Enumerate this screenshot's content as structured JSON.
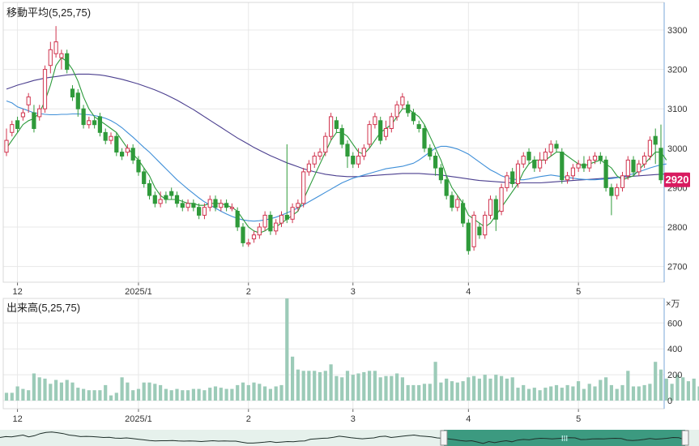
{
  "colors": {
    "up": "#d0344e",
    "down": "#2f9a3a",
    "ma5": "#2b9a3a",
    "ma25": "#3f8fd8",
    "ma75": "#4b3f8f",
    "volume": "#9ccbb8",
    "last_price_badge": "#d81b60",
    "navigator_fill": "#3c9a80",
    "grid": "#e8e8e8",
    "axis": "#333333"
  },
  "chart_data": [
    {
      "type": "candlestick",
      "title": "移動平均(5,25,75)",
      "x_ticks": [
        "12",
        "2025/1",
        "2",
        "3",
        "4",
        "5"
      ],
      "y_ticks": [
        "3300",
        "3200",
        "3100",
        "3000",
        "2900",
        "2800",
        "2700"
      ],
      "ylim": [
        2660,
        3370
      ],
      "last_price_label": "2920",
      "grid": true,
      "candles": [
        [
          2990,
          3020,
          2980,
          3050
        ],
        [
          3040,
          3060,
          3030,
          3070
        ],
        [
          3070,
          3050,
          3040,
          3080
        ],
        [
          3080,
          3090,
          3070,
          3100
        ],
        [
          3110,
          3130,
          3090,
          3140
        ],
        [
          3090,
          3050,
          3040,
          3110
        ],
        [
          3080,
          3100,
          3070,
          3110
        ],
        [
          3100,
          3200,
          3090,
          3210
        ],
        [
          3210,
          3250,
          3190,
          3270
        ],
        [
          3240,
          3270,
          3230,
          3310
        ],
        [
          3230,
          3240,
          3200,
          3250
        ],
        [
          3240,
          3200,
          3190,
          3250
        ],
        [
          3150,
          3130,
          3120,
          3160
        ],
        [
          3140,
          3100,
          3080,
          3150
        ],
        [
          3100,
          3060,
          3050,
          3110
        ],
        [
          3060,
          3070,
          3050,
          3080
        ],
        [
          3070,
          3060,
          3050,
          3080
        ],
        [
          3080,
          3040,
          3030,
          3090
        ],
        [
          3040,
          3020,
          3010,
          3050
        ],
        [
          3020,
          3030,
          3010,
          3040
        ],
        [
          3030,
          2990,
          2980,
          3040
        ],
        [
          2990,
          2980,
          2970,
          3000
        ],
        [
          2990,
          3000,
          2980,
          3010
        ],
        [
          3000,
          2970,
          2960,
          3010
        ],
        [
          2970,
          2940,
          2930,
          2980
        ],
        [
          2940,
          2910,
          2900,
          2950
        ],
        [
          2910,
          2880,
          2870,
          2920
        ],
        [
          2880,
          2860,
          2850,
          2890
        ],
        [
          2860,
          2870,
          2850,
          2890
        ],
        [
          2880,
          2870,
          2860,
          2890
        ],
        [
          2890,
          2880,
          2870,
          2900
        ],
        [
          2880,
          2860,
          2850,
          2890
        ],
        [
          2860,
          2850,
          2840,
          2870
        ],
        [
          2850,
          2860,
          2840,
          2870
        ],
        [
          2860,
          2850,
          2840,
          2870
        ],
        [
          2850,
          2830,
          2820,
          2860
        ],
        [
          2830,
          2850,
          2820,
          2860
        ],
        [
          2850,
          2870,
          2840,
          2880
        ],
        [
          2870,
          2850,
          2840,
          2880
        ],
        [
          2850,
          2860,
          2840,
          2870
        ],
        [
          2860,
          2850,
          2840,
          2870
        ],
        [
          2850,
          2850,
          2840,
          2860
        ],
        [
          2840,
          2800,
          2790,
          2850
        ],
        [
          2800,
          2760,
          2750,
          2810
        ],
        [
          2760,
          2760,
          2750,
          2770
        ],
        [
          2770,
          2780,
          2760,
          2790
        ],
        [
          2780,
          2800,
          2770,
          2810
        ],
        [
          2800,
          2830,
          2790,
          2840
        ],
        [
          2830,
          2790,
          2780,
          2840
        ],
        [
          2790,
          2810,
          2780,
          2820
        ],
        [
          2810,
          2830,
          2800,
          2840
        ],
        [
          2830,
          2820,
          2810,
          3010
        ],
        [
          2820,
          2850,
          2810,
          2860
        ],
        [
          2850,
          2860,
          2840,
          2870
        ],
        [
          2860,
          2940,
          2850,
          2950
        ],
        [
          2940,
          2960,
          2930,
          2970
        ],
        [
          2960,
          2980,
          2950,
          2990
        ],
        [
          2980,
          2990,
          2970,
          3000
        ],
        [
          2990,
          3030,
          2980,
          3040
        ],
        [
          3030,
          3080,
          3020,
          3090
        ],
        [
          3070,
          3050,
          3040,
          3080
        ],
        [
          3050,
          3010,
          3000,
          3060
        ],
        [
          3010,
          2980,
          2950,
          3020
        ],
        [
          2980,
          2960,
          2950,
          2990
        ],
        [
          2960,
          2980,
          2950,
          3000
        ],
        [
          2980,
          3000,
          2970,
          3010
        ],
        [
          3010,
          3060,
          3000,
          3070
        ],
        [
          3060,
          3080,
          3050,
          3090
        ],
        [
          3070,
          3020,
          3010,
          3080
        ],
        [
          3030,
          3050,
          3020,
          3070
        ],
        [
          3050,
          3080,
          3040,
          3090
        ],
        [
          3080,
          3110,
          3070,
          3120
        ],
        [
          3110,
          3130,
          3100,
          3140
        ],
        [
          3110,
          3090,
          3080,
          3120
        ],
        [
          3090,
          3070,
          3060,
          3100
        ],
        [
          3060,
          3050,
          3040,
          3070
        ],
        [
          3050,
          3000,
          2990,
          3060
        ],
        [
          3000,
          2980,
          2970,
          3010
        ],
        [
          2980,
          2950,
          2930,
          2990
        ],
        [
          2950,
          2920,
          2910,
          2960
        ],
        [
          2920,
          2880,
          2870,
          2930
        ],
        [
          2880,
          2850,
          2840,
          2890
        ],
        [
          2850,
          2870,
          2840,
          2880
        ],
        [
          2860,
          2810,
          2800,
          2870
        ],
        [
          2810,
          2740,
          2730,
          2820
        ],
        [
          2750,
          2830,
          2740,
          2840
        ],
        [
          2800,
          2780,
          2770,
          2810
        ],
        [
          2780,
          2830,
          2770,
          2840
        ],
        [
          2830,
          2870,
          2820,
          2880
        ],
        [
          2870,
          2820,
          2790,
          2880
        ],
        [
          2840,
          2900,
          2830,
          2910
        ],
        [
          2900,
          2930,
          2890,
          2940
        ],
        [
          2940,
          2910,
          2900,
          2950
        ],
        [
          2910,
          2960,
          2900,
          2970
        ],
        [
          2960,
          2980,
          2950,
          2990
        ],
        [
          2990,
          2970,
          2960,
          3000
        ],
        [
          2970,
          2950,
          2940,
          2980
        ],
        [
          2950,
          2970,
          2940,
          2990
        ],
        [
          2970,
          2990,
          2960,
          3000
        ],
        [
          2990,
          3010,
          2980,
          3020
        ],
        [
          3010,
          3000,
          2990,
          3020
        ],
        [
          2990,
          2920,
          2910,
          3000
        ],
        [
          2920,
          2930,
          2910,
          2940
        ],
        [
          2930,
          2950,
          2920,
          2960
        ],
        [
          2950,
          2960,
          2940,
          2970
        ],
        [
          2960,
          2950,
          2940,
          2980
        ],
        [
          2950,
          2970,
          2940,
          2980
        ],
        [
          2970,
          2980,
          2960,
          2990
        ],
        [
          2980,
          2970,
          2960,
          2990
        ],
        [
          2970,
          2900,
          2890,
          2980
        ],
        [
          2900,
          2880,
          2830,
          2910
        ],
        [
          2880,
          2900,
          2870,
          2910
        ],
        [
          2900,
          2930,
          2890,
          2940
        ],
        [
          2930,
          2970,
          2920,
          2980
        ],
        [
          2970,
          2940,
          2930,
          2980
        ],
        [
          2940,
          2960,
          2930,
          2970
        ],
        [
          2960,
          2980,
          2950,
          2990
        ],
        [
          2980,
          3020,
          2970,
          3030
        ],
        [
          3030,
          3010,
          2960,
          3050
        ],
        [
          3000,
          2920,
          2910,
          3060
        ]
      ],
      "ma5": [
        3000,
        3020,
        3040,
        3060,
        3070,
        3075,
        3090,
        3120,
        3160,
        3210,
        3230,
        3220,
        3200,
        3170,
        3130,
        3100,
        3080,
        3070,
        3060,
        3050,
        3040,
        3020,
        3000,
        2985,
        2970,
        2950,
        2930,
        2900,
        2880,
        2870,
        2870,
        2870,
        2865,
        2860,
        2860,
        2855,
        2855,
        2860,
        2860,
        2860,
        2855,
        2850,
        2840,
        2820,
        2800,
        2790,
        2785,
        2790,
        2800,
        2800,
        2810,
        2820,
        2830,
        2840,
        2870,
        2900,
        2930,
        2960,
        2990,
        3020,
        3040,
        3040,
        3030,
        3010,
        2990,
        2985,
        3000,
        3020,
        3040,
        3050,
        3060,
        3080,
        3100,
        3100,
        3090,
        3080,
        3060,
        3030,
        3000,
        2970,
        2930,
        2900,
        2880,
        2860,
        2830,
        2820,
        2810,
        2800,
        2810,
        2830,
        2850,
        2870,
        2890,
        2910,
        2940,
        2960,
        2970,
        2970,
        2970,
        2980,
        2990,
        2990,
        2980,
        2970,
        2960,
        2955,
        2960,
        2965,
        2970,
        2960,
        2950,
        2930,
        2920,
        2925,
        2930,
        2945,
        2960,
        2975,
        2990,
        2990,
        2970
      ],
      "ma25": [
        3120,
        3115,
        3105,
        3100,
        3095,
        3090,
        3088,
        3086,
        3085,
        3085,
        3086,
        3086,
        3087,
        3087,
        3086,
        3085,
        3083,
        3080,
        3076,
        3070,
        3062,
        3052,
        3040,
        3028,
        3015,
        3002,
        2990,
        2976,
        2962,
        2948,
        2934,
        2920,
        2908,
        2896,
        2885,
        2874,
        2864,
        2856,
        2848,
        2840,
        2833,
        2827,
        2822,
        2818,
        2816,
        2815,
        2816,
        2818,
        2821,
        2825,
        2830,
        2836,
        2842,
        2849,
        2856,
        2864,
        2872,
        2880,
        2888,
        2896,
        2904,
        2912,
        2918,
        2924,
        2928,
        2932,
        2936,
        2940,
        2944,
        2948,
        2950,
        2952,
        2954,
        2958,
        2962,
        2970,
        2980,
        2990,
        3000,
        3005,
        3005,
        3002,
        2998,
        2992,
        2985,
        2975,
        2965,
        2955,
        2945,
        2938,
        2930,
        2925,
        2922,
        2920,
        2920,
        2922,
        2925,
        2928,
        2930,
        2932,
        2930,
        2928,
        2926,
        2924,
        2922,
        2921,
        2920,
        2920,
        2921,
        2922,
        2923,
        2925,
        2928,
        2932,
        2935,
        2940,
        2945,
        2950,
        2954,
        2958,
        2960
      ],
      "ma75": [
        3150,
        3155,
        3160,
        3164,
        3168,
        3172,
        3175,
        3178,
        3180,
        3182,
        3184,
        3186,
        3187,
        3188,
        3188,
        3188,
        3187,
        3186,
        3184,
        3181,
        3178,
        3175,
        3171,
        3167,
        3163,
        3158,
        3153,
        3148,
        3142,
        3136,
        3129,
        3122,
        3114,
        3106,
        3098,
        3089,
        3080,
        3071,
        3062,
        3053,
        3044,
        3035,
        3026,
        3018,
        3010,
        3002,
        2995,
        2988,
        2981,
        2975,
        2969,
        2963,
        2958,
        2953,
        2948,
        2944,
        2940,
        2937,
        2934,
        2932,
        2930,
        2929,
        2928,
        2928,
        2928,
        2929,
        2930,
        2931,
        2932,
        2933,
        2934,
        2935,
        2936,
        2936,
        2936,
        2936,
        2935,
        2934,
        2933,
        2932,
        2930,
        2928,
        2926,
        2924,
        2922,
        2920,
        2918,
        2917,
        2916,
        2915,
        2914,
        2913,
        2912,
        2912,
        2912,
        2912,
        2912,
        2912,
        2913,
        2914,
        2915,
        2916,
        2917,
        2918,
        2919,
        2920,
        2921,
        2922,
        2923,
        2924,
        2925,
        2926,
        2927,
        2928,
        2929,
        2930,
        2931,
        2932,
        2933,
        2934,
        2935
      ]
    },
    {
      "type": "bar",
      "title": "出来高(5,25,75)",
      "unit_label": "×万",
      "y_ticks": [
        "600",
        "400",
        "200",
        "0"
      ],
      "ylim": [
        0,
        790
      ],
      "x_ticks": [
        "12",
        "2025/1",
        "2",
        "3",
        "4",
        "5"
      ],
      "values": [
        60,
        60,
        110,
        90,
        80,
        210,
        180,
        170,
        130,
        160,
        140,
        160,
        140,
        100,
        90,
        80,
        80,
        80,
        120,
        40,
        60,
        180,
        140,
        80,
        90,
        140,
        140,
        130,
        120,
        90,
        80,
        90,
        80,
        80,
        90,
        90,
        80,
        100,
        110,
        100,
        90,
        90,
        120,
        140,
        120,
        140,
        130,
        110,
        90,
        110,
        120,
        790,
        340,
        240,
        230,
        230,
        230,
        220,
        230,
        280,
        190,
        180,
        230,
        200,
        210,
        220,
        230,
        230,
        180,
        190,
        190,
        210,
        180,
        120,
        120,
        120,
        130,
        130,
        300,
        140,
        170,
        150,
        140,
        150,
        180,
        190,
        170,
        200,
        170,
        200,
        190,
        170,
        180,
        100,
        120,
        90,
        100,
        80,
        100,
        110,
        120,
        100,
        120,
        110,
        150,
        90,
        130,
        110,
        160,
        180,
        120,
        90,
        120,
        230,
        110,
        110,
        120,
        130,
        300,
        240,
        170,
        130,
        200,
        180,
        150,
        170,
        110
      ],
      "navigator": {
        "grip_label": "III"
      }
    }
  ]
}
